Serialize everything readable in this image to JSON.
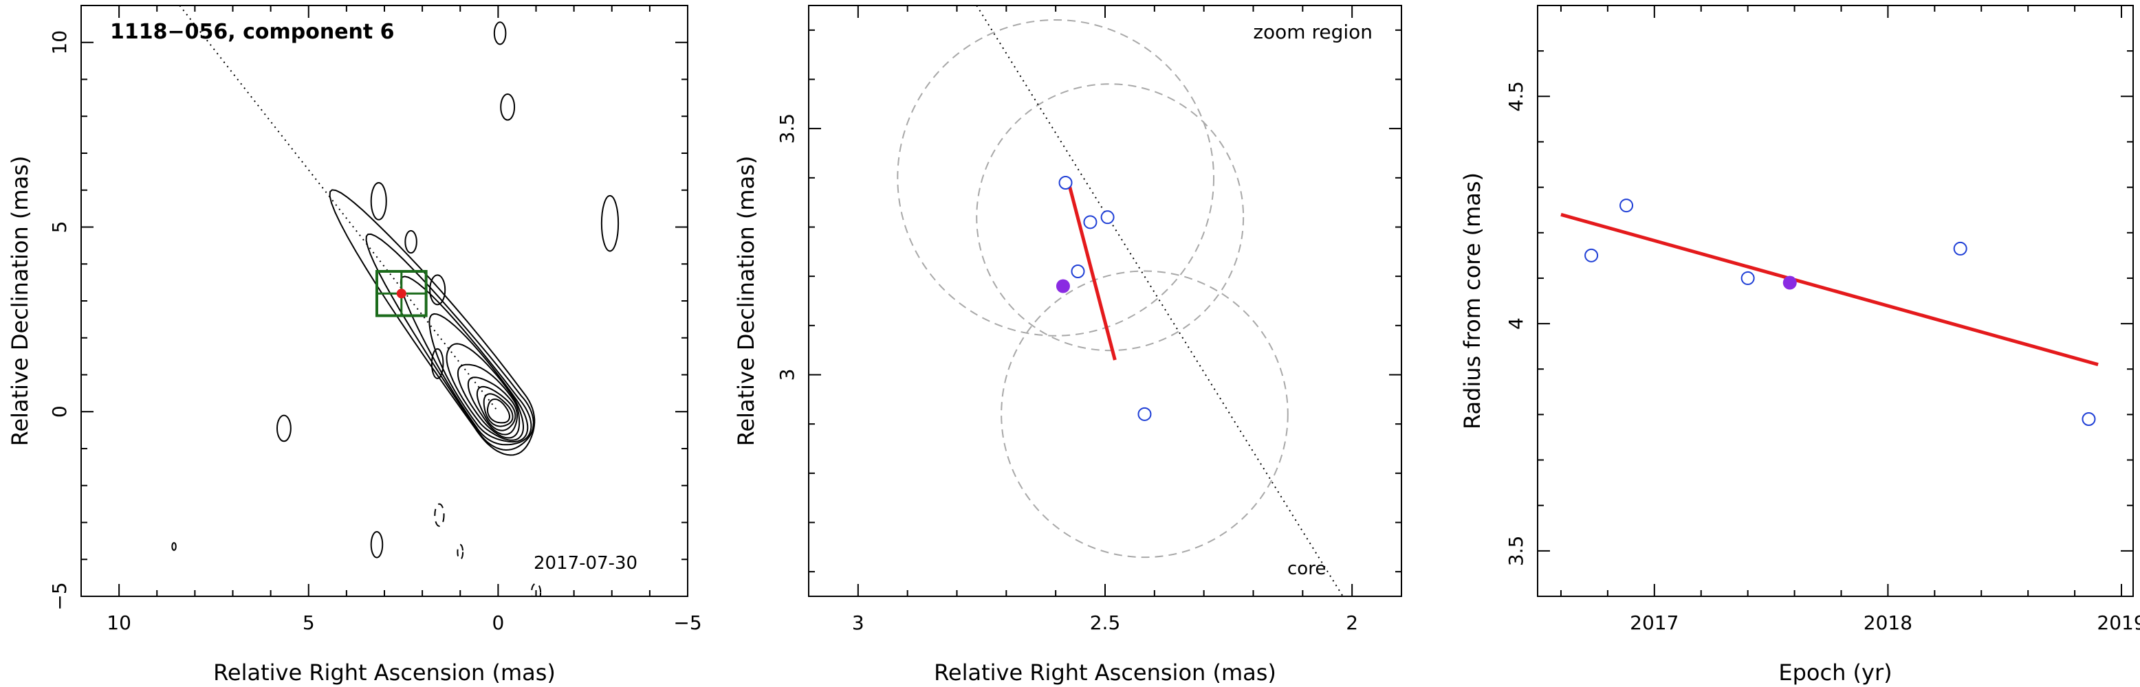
{
  "chart_data": [
    {
      "type": "contour",
      "title": "1118−056, component 6",
      "epoch_label": "2017-07-30",
      "xlabel": "Relative Right Ascension (mas)",
      "ylabel": "Relative Declination (mas)",
      "xlim": [
        11,
        -5
      ],
      "ylim": [
        -5,
        11
      ],
      "xticks": [
        10,
        5,
        0,
        -5
      ],
      "yticks": [
        -5,
        0,
        5,
        10
      ],
      "component_position": [
        2.55,
        3.2
      ],
      "zoom_box": {
        "ra": [
          3.2,
          1.9
        ],
        "dec": [
          2.6,
          3.8
        ]
      },
      "jet_direction_line": [
        [
          8.4,
          11
        ],
        [
          0,
          0
        ]
      ],
      "contour_color": "#000000",
      "box_color": "#1b6b1b"
    },
    {
      "type": "scatter",
      "title": "zoom region",
      "xlabel": "Relative Right Ascension (mas)",
      "ylabel": "Relative Declination (mas)",
      "xlim": [
        3.1,
        1.9
      ],
      "ylim": [
        2.55,
        3.75
      ],
      "xticks": [
        3,
        2.5,
        2
      ],
      "yticks": [
        3,
        3.5
      ],
      "core_label": "core",
      "points_open": [
        {
          "x": 2.58,
          "y": 3.39
        },
        {
          "x": 2.53,
          "y": 3.31
        },
        {
          "x": 2.495,
          "y": 3.32
        },
        {
          "x": 2.555,
          "y": 3.21
        },
        {
          "x": 2.42,
          "y": 2.92
        }
      ],
      "point_filled": {
        "x": 2.585,
        "y": 3.18
      },
      "fit_line": {
        "start": [
          2.575,
          3.395
        ],
        "end": [
          2.48,
          3.03
        ]
      },
      "circles": [
        {
          "x": 2.6,
          "y": 3.4,
          "r": 0.32
        },
        {
          "x": 2.49,
          "y": 3.32,
          "r": 0.27
        },
        {
          "x": 2.42,
          "y": 2.92,
          "r": 0.29
        }
      ],
      "direction_line": [
        [
          2.76,
          3.75
        ],
        [
          2.0,
          2.52
        ]
      ],
      "open_point_color": "#1f3fd6",
      "filled_point_color": "#8a2be2",
      "fit_color": "#e41a1c",
      "circle_color": "#a8a8a8"
    },
    {
      "type": "scatter",
      "xlabel": "Epoch (yr)",
      "ylabel": "Radius from core (mas)",
      "xlim": [
        2016.5,
        2019.05
      ],
      "ylim": [
        3.4,
        4.7
      ],
      "xticks": [
        2017,
        2018,
        2019
      ],
      "yticks": [
        3.5,
        4,
        4.5
      ],
      "points_open": [
        {
          "x": 2016.73,
          "y": 4.15
        },
        {
          "x": 2016.88,
          "y": 4.26
        },
        {
          "x": 2017.4,
          "y": 4.1
        },
        {
          "x": 2018.31,
          "y": 4.165
        },
        {
          "x": 2018.86,
          "y": 3.79
        }
      ],
      "point_filled": {
        "x": 2017.58,
        "y": 4.09
      },
      "fit_line": {
        "start": [
          2016.6,
          4.24
        ],
        "end": [
          2018.9,
          3.91
        ]
      },
      "open_point_color": "#1f3fd6",
      "filled_point_color": "#8a2be2",
      "fit_color": "#e41a1c"
    }
  ]
}
